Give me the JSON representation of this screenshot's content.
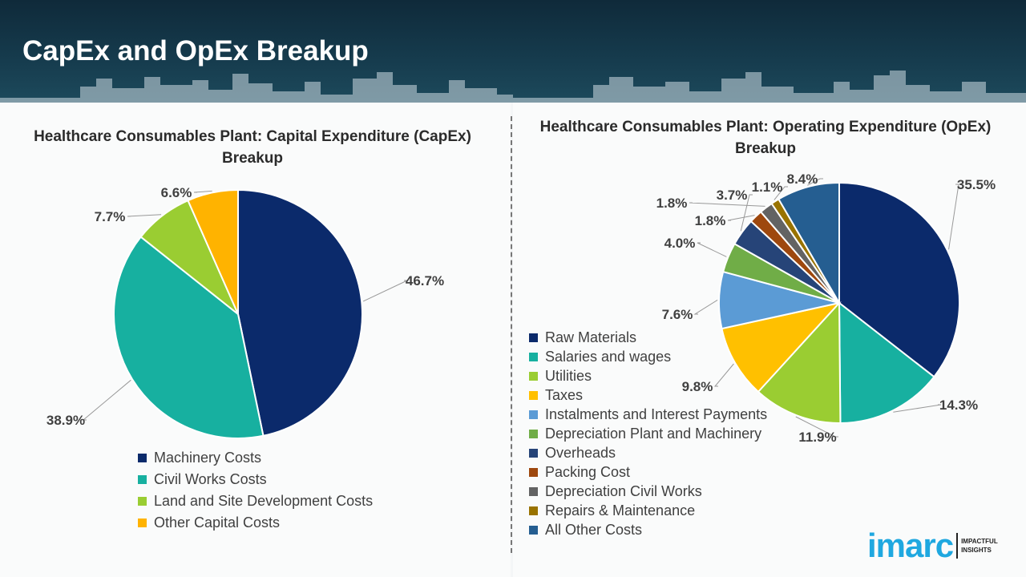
{
  "header": {
    "title": "CapEx and OpEx Breakup"
  },
  "chart_data": [
    {
      "type": "pie",
      "title": "Healthcare Consumables Plant: Capital Expenditure (CapEx) Breakup",
      "categories": [
        "Machinery Costs",
        "Civil Works Costs",
        "Land and Site Development Costs",
        "Other Capital Costs"
      ],
      "values": [
        46.7,
        38.9,
        7.7,
        6.6
      ],
      "labels": [
        "46.7%",
        "38.9%",
        "7.7%",
        "6.6%"
      ],
      "colors": [
        "#0b2a6b",
        "#17b0a0",
        "#9acd32",
        "#ffb300"
      ],
      "legend": "bottom"
    },
    {
      "type": "pie",
      "title": "Healthcare Consumables Plant: Operating Expenditure (OpEx) Breakup",
      "categories": [
        "Raw Materials",
        "Salaries and wages",
        "Utilities",
        "Taxes",
        "Instalments and Interest Payments",
        "Depreciation Plant and Machinery",
        "Overheads",
        "Packing Cost",
        "Depreciation Civil Works",
        "Repairs & Maintenance",
        "All Other Costs"
      ],
      "values": [
        35.5,
        14.3,
        11.9,
        9.8,
        7.6,
        4.0,
        3.7,
        1.8,
        1.8,
        1.1,
        8.4
      ],
      "labels": [
        "35.5%",
        "14.3%",
        "11.9%",
        "9.8%",
        "7.6%",
        "4.0%",
        "3.7%",
        "1.8%",
        "1.8%",
        "1.1%",
        "8.4%"
      ],
      "colors": [
        "#0b2a6b",
        "#17b0a0",
        "#9acd32",
        "#ffc000",
        "#5b9bd5",
        "#70ad47",
        "#264478",
        "#9e480e",
        "#636363",
        "#997300",
        "#255e91"
      ],
      "legend": "left"
    }
  ],
  "logo": {
    "brand": "imarc",
    "tagline_1": "IMPACTFUL",
    "tagline_2": "INSIGHTS"
  }
}
